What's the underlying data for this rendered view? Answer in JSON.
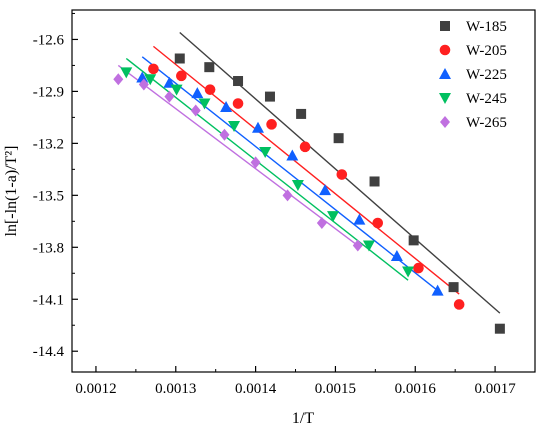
{
  "chart_data": {
    "type": "scatter",
    "title": "",
    "xlabel": "1/T",
    "ylabel": "ln[-ln(1-a)/T²]",
    "xlim": [
      0.00117,
      0.00175
    ],
    "ylim": [
      -14.52,
      -12.43
    ],
    "xticks": [
      0.0012,
      0.0013,
      0.0014,
      0.0015,
      0.0016,
      0.0017
    ],
    "xtick_labels": [
      "0.0012",
      "0.0013",
      "0.0014",
      "0.0015",
      "0.0016",
      "0.0017"
    ],
    "yticks": [
      -12.6,
      -12.9,
      -13.2,
      -13.5,
      -13.8,
      -14.1,
      -14.4
    ],
    "ytick_labels": [
      "-12.6",
      "-12.9",
      "-13.2",
      "-13.5",
      "-13.8",
      "-14.1",
      "-14.4"
    ],
    "grid": false,
    "legend_position": "top-right",
    "series": [
      {
        "name": "W-185",
        "marker": "square",
        "color": "#404040",
        "points": [
          [
            0.001305,
            -12.71
          ],
          [
            0.001342,
            -12.76
          ],
          [
            0.001378,
            -12.84
          ],
          [
            0.001418,
            -12.93
          ],
          [
            0.001457,
            -13.03
          ],
          [
            0.001504,
            -13.17
          ],
          [
            0.001549,
            -13.42
          ],
          [
            0.001598,
            -13.76
          ],
          [
            0.001648,
            -14.03
          ],
          [
            0.001706,
            -14.27
          ]
        ],
        "fit_line": [
          [
            0.001305,
            -12.56
          ],
          [
            0.001706,
            -14.18
          ]
        ]
      },
      {
        "name": "W-205",
        "marker": "circle",
        "color": "#ff2020",
        "points": [
          [
            0.001272,
            -12.77
          ],
          [
            0.001307,
            -12.81
          ],
          [
            0.001343,
            -12.89
          ],
          [
            0.001378,
            -12.97
          ],
          [
            0.00142,
            -13.09
          ],
          [
            0.001462,
            -13.22
          ],
          [
            0.001508,
            -13.38
          ],
          [
            0.001553,
            -13.66
          ],
          [
            0.001604,
            -13.92
          ],
          [
            0.001655,
            -14.13
          ]
        ],
        "fit_line": [
          [
            0.001272,
            -12.64
          ],
          [
            0.001655,
            -14.07
          ]
        ]
      },
      {
        "name": "W-225",
        "marker": "triangle-up",
        "color": "#1060ff",
        "points": [
          [
            0.001258,
            -12.82
          ],
          [
            0.001292,
            -12.85
          ],
          [
            0.001327,
            -12.91
          ],
          [
            0.001363,
            -12.99
          ],
          [
            0.001403,
            -13.11
          ],
          [
            0.001446,
            -13.27
          ],
          [
            0.001487,
            -13.47
          ],
          [
            0.00153,
            -13.64
          ],
          [
            0.001577,
            -13.85
          ],
          [
            0.001628,
            -14.05
          ]
        ],
        "fit_line": [
          [
            0.001258,
            -12.7
          ],
          [
            0.001628,
            -14.05
          ]
        ]
      },
      {
        "name": "W-245",
        "marker": "triangle-down",
        "color": "#00c060",
        "points": [
          [
            0.001238,
            -12.79
          ],
          [
            0.001268,
            -12.83
          ],
          [
            0.001301,
            -12.89
          ],
          [
            0.001336,
            -12.97
          ],
          [
            0.001373,
            -13.1
          ],
          [
            0.001412,
            -13.25
          ],
          [
            0.001453,
            -13.44
          ],
          [
            0.001497,
            -13.62
          ],
          [
            0.001542,
            -13.79
          ],
          [
            0.001591,
            -13.94
          ]
        ],
        "fit_line": [
          [
            0.001238,
            -12.71
          ],
          [
            0.001591,
            -13.99
          ]
        ]
      },
      {
        "name": "W-265",
        "marker": "diamond",
        "color": "#c070e0",
        "points": [
          [
            0.001228,
            -12.83
          ],
          [
            0.00126,
            -12.86
          ],
          [
            0.001292,
            -12.93
          ],
          [
            0.001325,
            -13.01
          ],
          [
            0.001361,
            -13.15
          ],
          [
            0.0014,
            -13.31
          ],
          [
            0.00144,
            -13.5
          ],
          [
            0.001483,
            -13.66
          ],
          [
            0.001528,
            -13.79
          ]
        ],
        "fit_line": [
          [
            0.001228,
            -12.75
          ],
          [
            0.001528,
            -13.79
          ]
        ]
      }
    ]
  }
}
